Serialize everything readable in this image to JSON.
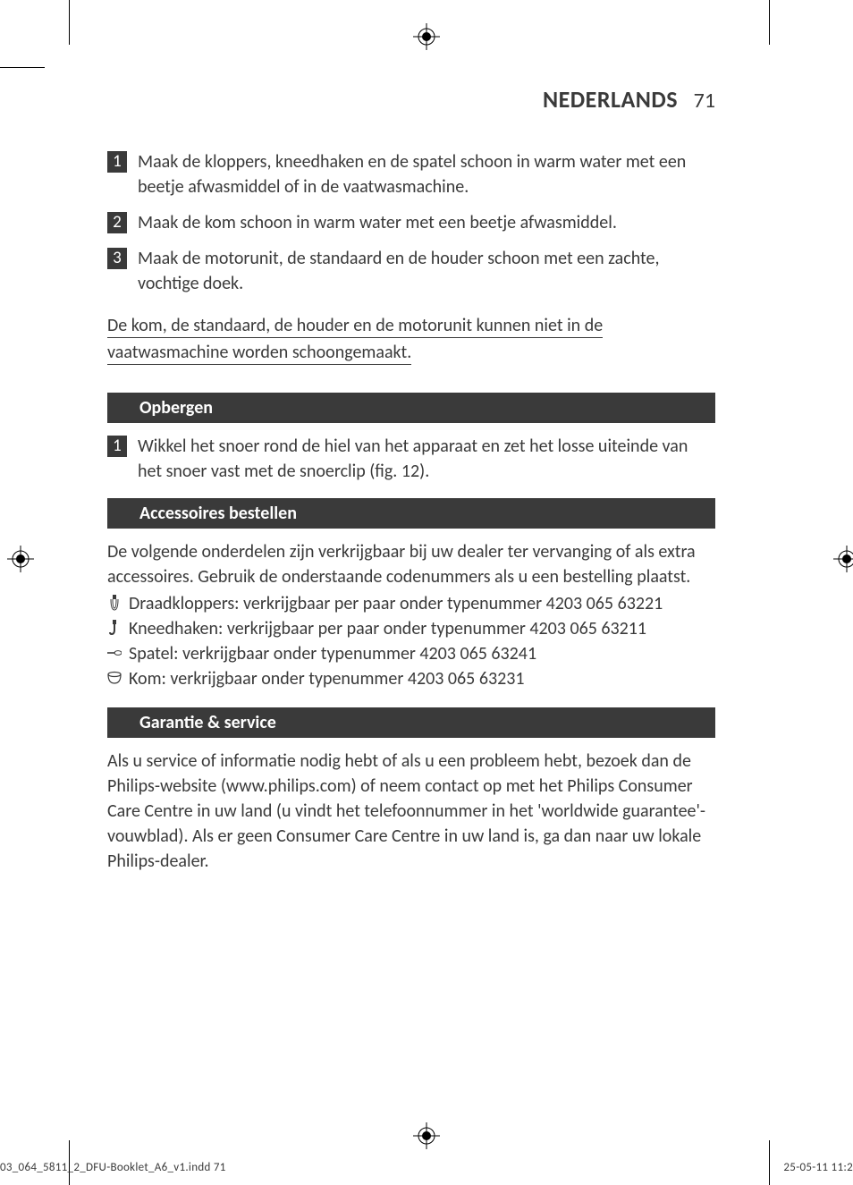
{
  "header": {
    "language": "NEDERLANDS",
    "page_number": "71"
  },
  "cleaning_steps": [
    {
      "num": "1",
      "text": "Maak de kloppers, kneedhaken en de spatel schoon in warm water met een beetje afwasmiddel of in de vaatwasmachine."
    },
    {
      "num": "2",
      "text": "Maak de kom schoon in warm water met een beetje afwasmiddel."
    },
    {
      "num": "3",
      "text": "Maak de motorunit, de standaard en de houder schoon met een zachte, vochtige doek."
    }
  ],
  "warning_line1": "De kom, de standaard, de houder en de motorunit kunnen niet in de ",
  "warning_line2": "vaatwasmachine worden schoongemaakt. ",
  "section_storage": {
    "title": "Opbergen"
  },
  "storage_steps": [
    {
      "num": "1",
      "text": "Wikkel het snoer rond de hiel van het apparaat en zet het losse uiteinde van het snoer vast met de snoerclip (fig. 12)."
    }
  ],
  "section_accessories": {
    "title": "Accessoires bestellen",
    "intro": "De volgende onderdelen zijn verkrijgbaar bij uw dealer ter vervanging of als extra accessoires. Gebruik de onderstaande codenummers als u een bestelling plaatst.",
    "items": [
      {
        "icon": "whisk",
        "text": "Draadkloppers: verkrijgbaar per paar onder typenummer 4203 065 63221"
      },
      {
        "icon": "hook",
        "text": "Kneedhaken: verkrijgbaar per paar onder typenummer 4203 065 63211"
      },
      {
        "icon": "spatula",
        "text": "Spatel: verkrijgbaar onder typenummer 4203 065 63241"
      },
      {
        "icon": "bowl",
        "text": "Kom: verkrijgbaar onder typenummer 4203 065 63231"
      }
    ]
  },
  "section_warranty": {
    "title": "Garantie & service",
    "body": "Als u service of informatie nodig hebt of als u een probleem hebt, bezoek dan de Philips-website (www.philips.com) of neem contact op met het Philips Consumer Care Centre in uw land (u vindt het telefoonnummer in het 'worldwide guarantee'-vouwblad). Als er geen Consumer Care Centre in uw land is, ga dan naar uw lokale Philips-dealer."
  },
  "footer": {
    "left": "03_064_5811_2_DFU-Booklet_A6_v1.indd   71",
    "right": "25-05-11   11:2"
  },
  "colors": {
    "text": "#3a3a3a",
    "bar_bg": "#3a3a3a",
    "bar_text": "#ffffff",
    "page_bg": "#ffffff"
  }
}
